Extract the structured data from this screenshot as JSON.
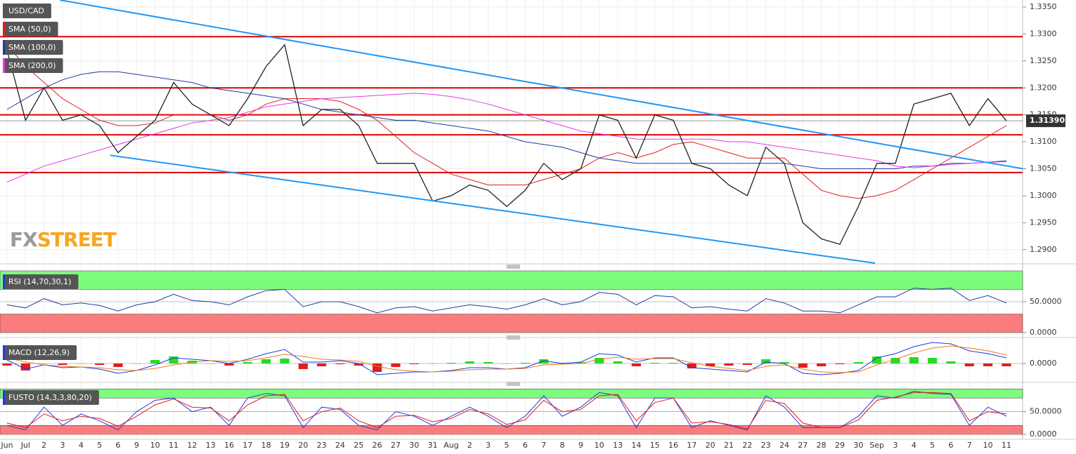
{
  "chart_data": [
    {
      "type": "line",
      "title": "USD/CAD",
      "categories": [
        "Jun",
        "Jul",
        "2",
        "3",
        "4",
        "5",
        "6",
        "9",
        "10",
        "11",
        "12",
        "13",
        "16",
        "17",
        "18",
        "19",
        "20",
        "23",
        "24",
        "25",
        "26",
        "27",
        "30",
        "31",
        "Aug",
        "2",
        "3",
        "5",
        "6",
        "7",
        "8",
        "9",
        "10",
        "13",
        "14",
        "15",
        "16",
        "17",
        "20",
        "21",
        "22",
        "23",
        "24",
        "27",
        "28",
        "29",
        "30",
        "Sep",
        "3",
        "4",
        "5",
        "6",
        "7",
        "10",
        "11"
      ],
      "price": {
        "color": "#222222",
        "values": [
          1.327,
          1.314,
          1.32,
          1.314,
          1.315,
          1.313,
          1.308,
          1.311,
          1.314,
          1.321,
          1.317,
          1.315,
          1.313,
          1.318,
          1.324,
          1.328,
          1.313,
          1.316,
          1.316,
          1.313,
          1.306,
          1.306,
          1.306,
          1.299,
          1.3,
          1.302,
          1.301,
          1.298,
          1.301,
          1.306,
          1.303,
          1.305,
          1.315,
          1.314,
          1.307,
          1.315,
          1.314,
          1.306,
          1.305,
          1.302,
          1.3,
          1.309,
          1.306,
          1.295,
          1.292,
          1.291,
          1.298,
          1.306,
          1.306,
          1.317,
          1.318,
          1.319,
          1.313,
          1.318,
          1.3139
        ]
      },
      "series": [
        {
          "name": "SMA (50,0)",
          "color": "#e01e1e",
          "values": [
            1.328,
            1.324,
            1.321,
            1.318,
            1.316,
            1.314,
            1.313,
            1.313,
            1.3135,
            1.315,
            1.315,
            1.315,
            1.314,
            1.315,
            1.317,
            1.318,
            1.318,
            1.318,
            1.3175,
            1.316,
            1.314,
            1.311,
            1.308,
            1.306,
            1.304,
            1.303,
            1.302,
            1.302,
            1.302,
            1.303,
            1.304,
            1.305,
            1.307,
            1.308,
            1.307,
            1.308,
            1.3095,
            1.31,
            1.309,
            1.308,
            1.307,
            1.307,
            1.307,
            1.304,
            1.301,
            1.3,
            1.2995,
            1.3,
            1.301,
            1.303,
            1.305,
            1.307,
            1.309,
            1.311,
            1.313
          ]
        },
        {
          "name": "SMA (100,0)",
          "color": "#1f3c9e",
          "values": [
            1.316,
            1.318,
            1.32,
            1.3215,
            1.3225,
            1.323,
            1.323,
            1.3225,
            1.322,
            1.3215,
            1.321,
            1.32,
            1.3195,
            1.319,
            1.3185,
            1.318,
            1.317,
            1.316,
            1.3155,
            1.315,
            1.3145,
            1.314,
            1.314,
            1.3135,
            1.313,
            1.3125,
            1.312,
            1.311,
            1.31,
            1.3095,
            1.309,
            1.308,
            1.307,
            1.3065,
            1.306,
            1.306,
            1.306,
            1.306,
            1.306,
            1.306,
            1.306,
            1.306,
            1.306,
            1.3055,
            1.305,
            1.305,
            1.305,
            1.305,
            1.305,
            1.3055,
            1.3055,
            1.306,
            1.306,
            1.3062,
            1.3065
          ]
        },
        {
          "name": "SMA (200,0)",
          "color": "#e03ce0",
          "values": [
            1.3025,
            1.304,
            1.3055,
            1.3065,
            1.3075,
            1.3085,
            1.3095,
            1.3105,
            1.3115,
            1.3125,
            1.3135,
            1.314,
            1.3145,
            1.3155,
            1.3165,
            1.317,
            1.3175,
            1.318,
            1.3182,
            1.3184,
            1.3186,
            1.3188,
            1.319,
            1.3188,
            1.3184,
            1.3178,
            1.317,
            1.316,
            1.315,
            1.314,
            1.313,
            1.312,
            1.3115,
            1.311,
            1.3105,
            1.3105,
            1.3105,
            1.3105,
            1.3105,
            1.31,
            1.31,
            1.3095,
            1.309,
            1.3085,
            1.308,
            1.3075,
            1.307,
            1.3065,
            1.3055,
            1.3052,
            1.3055,
            1.3058,
            1.306,
            1.3062,
            1.3063
          ]
        }
      ],
      "levels": [
        1.3295,
        1.32,
        1.315,
        1.3113,
        1.3043
      ],
      "level_color": "#dd0000",
      "trendlines": [
        {
          "points": [
            [
              2.85,
              1.3363
            ],
            [
              54.9,
              1.305
            ]
          ]
        },
        {
          "points": [
            [
              5.58,
              1.3075
            ],
            [
              46.9,
              1.2875
            ]
          ]
        }
      ],
      "trendline_color": "#2196f3",
      "last": {
        "value": 1.3139,
        "label": "1.31390"
      },
      "watermark": [
        "FX",
        "STREET"
      ],
      "ylim": [
        1.2875,
        1.3363
      ],
      "yticks": [
        {
          "value": 1.335,
          "label": "1.3350"
        },
        {
          "value": 1.33,
          "label": "1.3300"
        },
        {
          "value": 1.325,
          "label": "1.3250"
        },
        {
          "value": 1.32,
          "label": "1.3200"
        },
        {
          "value": 1.315,
          "label": "1.3150"
        },
        {
          "value": 1.31,
          "label": "1.3100"
        },
        {
          "value": 1.305,
          "label": "1.3050"
        },
        {
          "value": 1.3,
          "label": "1.3000"
        },
        {
          "value": 1.295,
          "label": "1.2950"
        },
        {
          "value": 1.29,
          "label": "1.2900"
        }
      ],
      "grid": true
    },
    {
      "type": "line",
      "title": "RSI (14,70,30,1)",
      "ylim": [
        0,
        100
      ],
      "yticks": [
        {
          "value": 50,
          "label": "50.0000"
        },
        {
          "value": 0,
          "label": "0.0000"
        }
      ],
      "bands": [
        {
          "from": 70,
          "to": 100,
          "color": "#7cfc7c"
        },
        {
          "from": 0,
          "to": 30,
          "color": "#fb7c7c"
        }
      ],
      "series": [
        {
          "color": "#1f3c9e",
          "values": [
            45,
            40,
            55,
            45,
            48,
            44,
            35,
            45,
            50,
            62,
            52,
            50,
            45,
            58,
            68,
            70,
            42,
            50,
            50,
            42,
            32,
            40,
            42,
            35,
            40,
            45,
            42,
            38,
            45,
            55,
            45,
            50,
            65,
            62,
            45,
            60,
            58,
            40,
            42,
            38,
            35,
            55,
            48,
            35,
            35,
            32,
            45,
            58,
            58,
            72,
            70,
            72,
            52,
            60,
            48
          ]
        }
      ]
    },
    {
      "type": "macd",
      "title": "MACD (12,26,9)",
      "ylim": [
        -0.0022,
        0.0031
      ],
      "yticks": [
        {
          "value": 0,
          "label": "0.0000"
        }
      ],
      "histogram": {
        "up_color": "#22dd22",
        "down_color": "#e01e1e",
        "values": [
          -0.0003,
          -0.001,
          0.0,
          -0.0002,
          0.0,
          -0.0002,
          -0.0005,
          0.0,
          0.0005,
          0.001,
          0.0004,
          0.0,
          -0.0003,
          0.0002,
          0.0006,
          0.0007,
          -0.0008,
          -0.0004,
          -0.0001,
          -0.0003,
          -0.0012,
          -0.0005,
          -0.0001,
          0.0,
          0.0001,
          0.0003,
          0.0002,
          0.0,
          0.0001,
          0.0006,
          0.0001,
          0.0002,
          0.0008,
          0.0003,
          -0.0004,
          0.0001,
          0.0001,
          -0.0007,
          -0.0004,
          -0.0003,
          -0.0002,
          0.0006,
          0.0002,
          -0.0006,
          -0.0004,
          -0.0001,
          0.0002,
          0.001,
          0.0008,
          0.0009,
          0.0008,
          0.0003,
          -0.0004,
          -0.0004,
          -0.0004
        ]
      },
      "series": [
        {
          "color": "#1f3cde",
          "values": [
            0.0005,
            -0.0008,
            -0.0002,
            -0.0006,
            -0.0005,
            -0.0008,
            -0.0014,
            -0.001,
            -0.0002,
            0.0008,
            0.0006,
            0.0004,
            0.0,
            0.0006,
            0.0014,
            0.002,
            0.0002,
            0.0002,
            0.0004,
            0.0,
            -0.0016,
            -0.0014,
            -0.0012,
            -0.0012,
            -0.001,
            -0.0006,
            -0.0006,
            -0.0008,
            -0.0006,
            0.0004,
            0.0,
            0.0002,
            0.0014,
            0.0012,
            0.0002,
            0.0008,
            0.0008,
            -0.0006,
            -0.0008,
            -0.001,
            -0.0012,
            0.0002,
            0.0,
            -0.0014,
            -0.0016,
            -0.0014,
            -0.001,
            0.0008,
            0.0014,
            0.0024,
            0.003,
            0.0028,
            0.0018,
            0.0014,
            0.0008
          ]
        },
        {
          "color": "#f07a1e",
          "values": [
            0.0008,
            0.0002,
            -0.0002,
            -0.0004,
            -0.0005,
            -0.0006,
            -0.0009,
            -0.001,
            -0.0007,
            -0.0002,
            0.0002,
            0.0004,
            0.0003,
            0.0004,
            0.0008,
            0.0013,
            0.001,
            0.0006,
            0.0005,
            0.0003,
            -0.0004,
            -0.0009,
            -0.0011,
            -0.0012,
            -0.0011,
            -0.0009,
            -0.0008,
            -0.0008,
            -0.0007,
            -0.0002,
            -0.0001,
            0.0,
            0.0006,
            0.0009,
            0.0006,
            0.0007,
            0.0007,
            0.0001,
            -0.0004,
            -0.0007,
            -0.001,
            -0.0004,
            -0.0002,
            -0.0008,
            -0.0012,
            -0.0013,
            -0.0012,
            -0.0002,
            0.0006,
            0.0015,
            0.0022,
            0.0025,
            0.0022,
            0.0018,
            0.0012
          ]
        }
      ]
    },
    {
      "type": "line",
      "title": "FUSTO (14,3,3,80,20)",
      "ylim": [
        -9,
        105
      ],
      "yticks": [
        {
          "value": 50,
          "label": "50.0000"
        },
        {
          "value": 0,
          "label": "0.0000"
        }
      ],
      "bands": [
        {
          "from": 80,
          "to": 100,
          "color": "#7cfc7c"
        },
        {
          "from": 0,
          "to": 20,
          "color": "#fb7c7c"
        }
      ],
      "series": [
        {
          "color": "#1f3cde",
          "values": [
            20,
            10,
            60,
            20,
            45,
            30,
            10,
            50,
            75,
            80,
            50,
            60,
            20,
            80,
            90,
            85,
            15,
            60,
            55,
            20,
            10,
            50,
            40,
            20,
            40,
            60,
            40,
            15,
            40,
            85,
            40,
            60,
            92,
            85,
            15,
            80,
            80,
            15,
            30,
            20,
            10,
            85,
            60,
            15,
            15,
            15,
            40,
            85,
            80,
            95,
            90,
            88,
            20,
            60,
            40
          ]
        },
        {
          "color": "#e01e1e",
          "values": [
            25,
            15,
            45,
            30,
            40,
            35,
            18,
            40,
            65,
            78,
            60,
            58,
            30,
            65,
            85,
            88,
            30,
            50,
            58,
            30,
            15,
            40,
            42,
            28,
            35,
            55,
            45,
            22,
            32,
            75,
            50,
            55,
            85,
            88,
            30,
            70,
            80,
            25,
            28,
            22,
            12,
            75,
            68,
            25,
            15,
            15,
            32,
            75,
            82,
            92,
            92,
            90,
            30,
            50,
            45
          ]
        }
      ]
    }
  ]
}
